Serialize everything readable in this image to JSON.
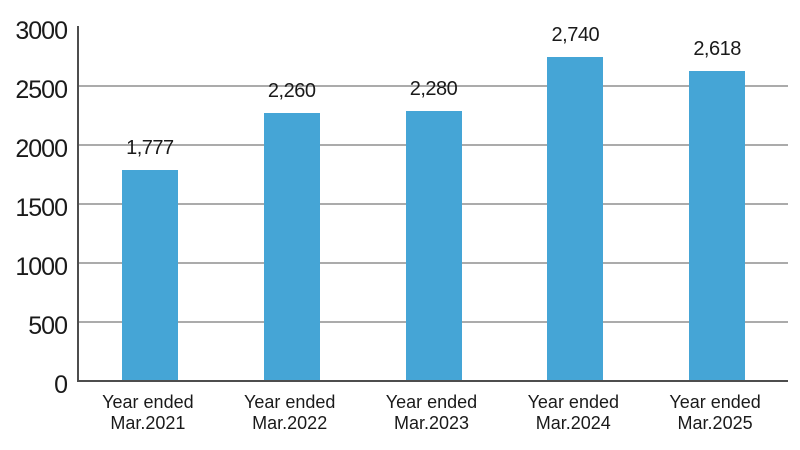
{
  "chart_data": {
    "type": "bar",
    "title": "",
    "xlabel": "",
    "ylabel": "",
    "categories": [
      [
        "Year ended",
        "Mar.2021"
      ],
      [
        "Year ended",
        "Mar.2022"
      ],
      [
        "Year ended",
        "Mar.2023"
      ],
      [
        "Year ended",
        "Mar.2024"
      ],
      [
        "Year ended",
        "Mar.2025"
      ]
    ],
    "values": [
      1777,
      2260,
      2280,
      2740,
      2618
    ],
    "value_labels": [
      "1,777",
      "2,260",
      "2,280",
      "2,740",
      "2,618"
    ],
    "ylim": [
      0,
      3000
    ],
    "y_ticks": [
      0,
      500,
      1000,
      1500,
      2000,
      2500,
      3000
    ],
    "y_tick_labels": [
      "0",
      "500",
      "1000",
      "1500",
      "2000",
      "2500",
      "3000"
    ],
    "grid": "horizontal gridlines at interior ticks only, none at top (3000)",
    "legend": "none",
    "colors": {
      "bar": "#45a5d6",
      "gridline": "#ababab",
      "axis": "#4d4d4d",
      "text": "#1a1a1a",
      "background": "#ffffff"
    }
  }
}
